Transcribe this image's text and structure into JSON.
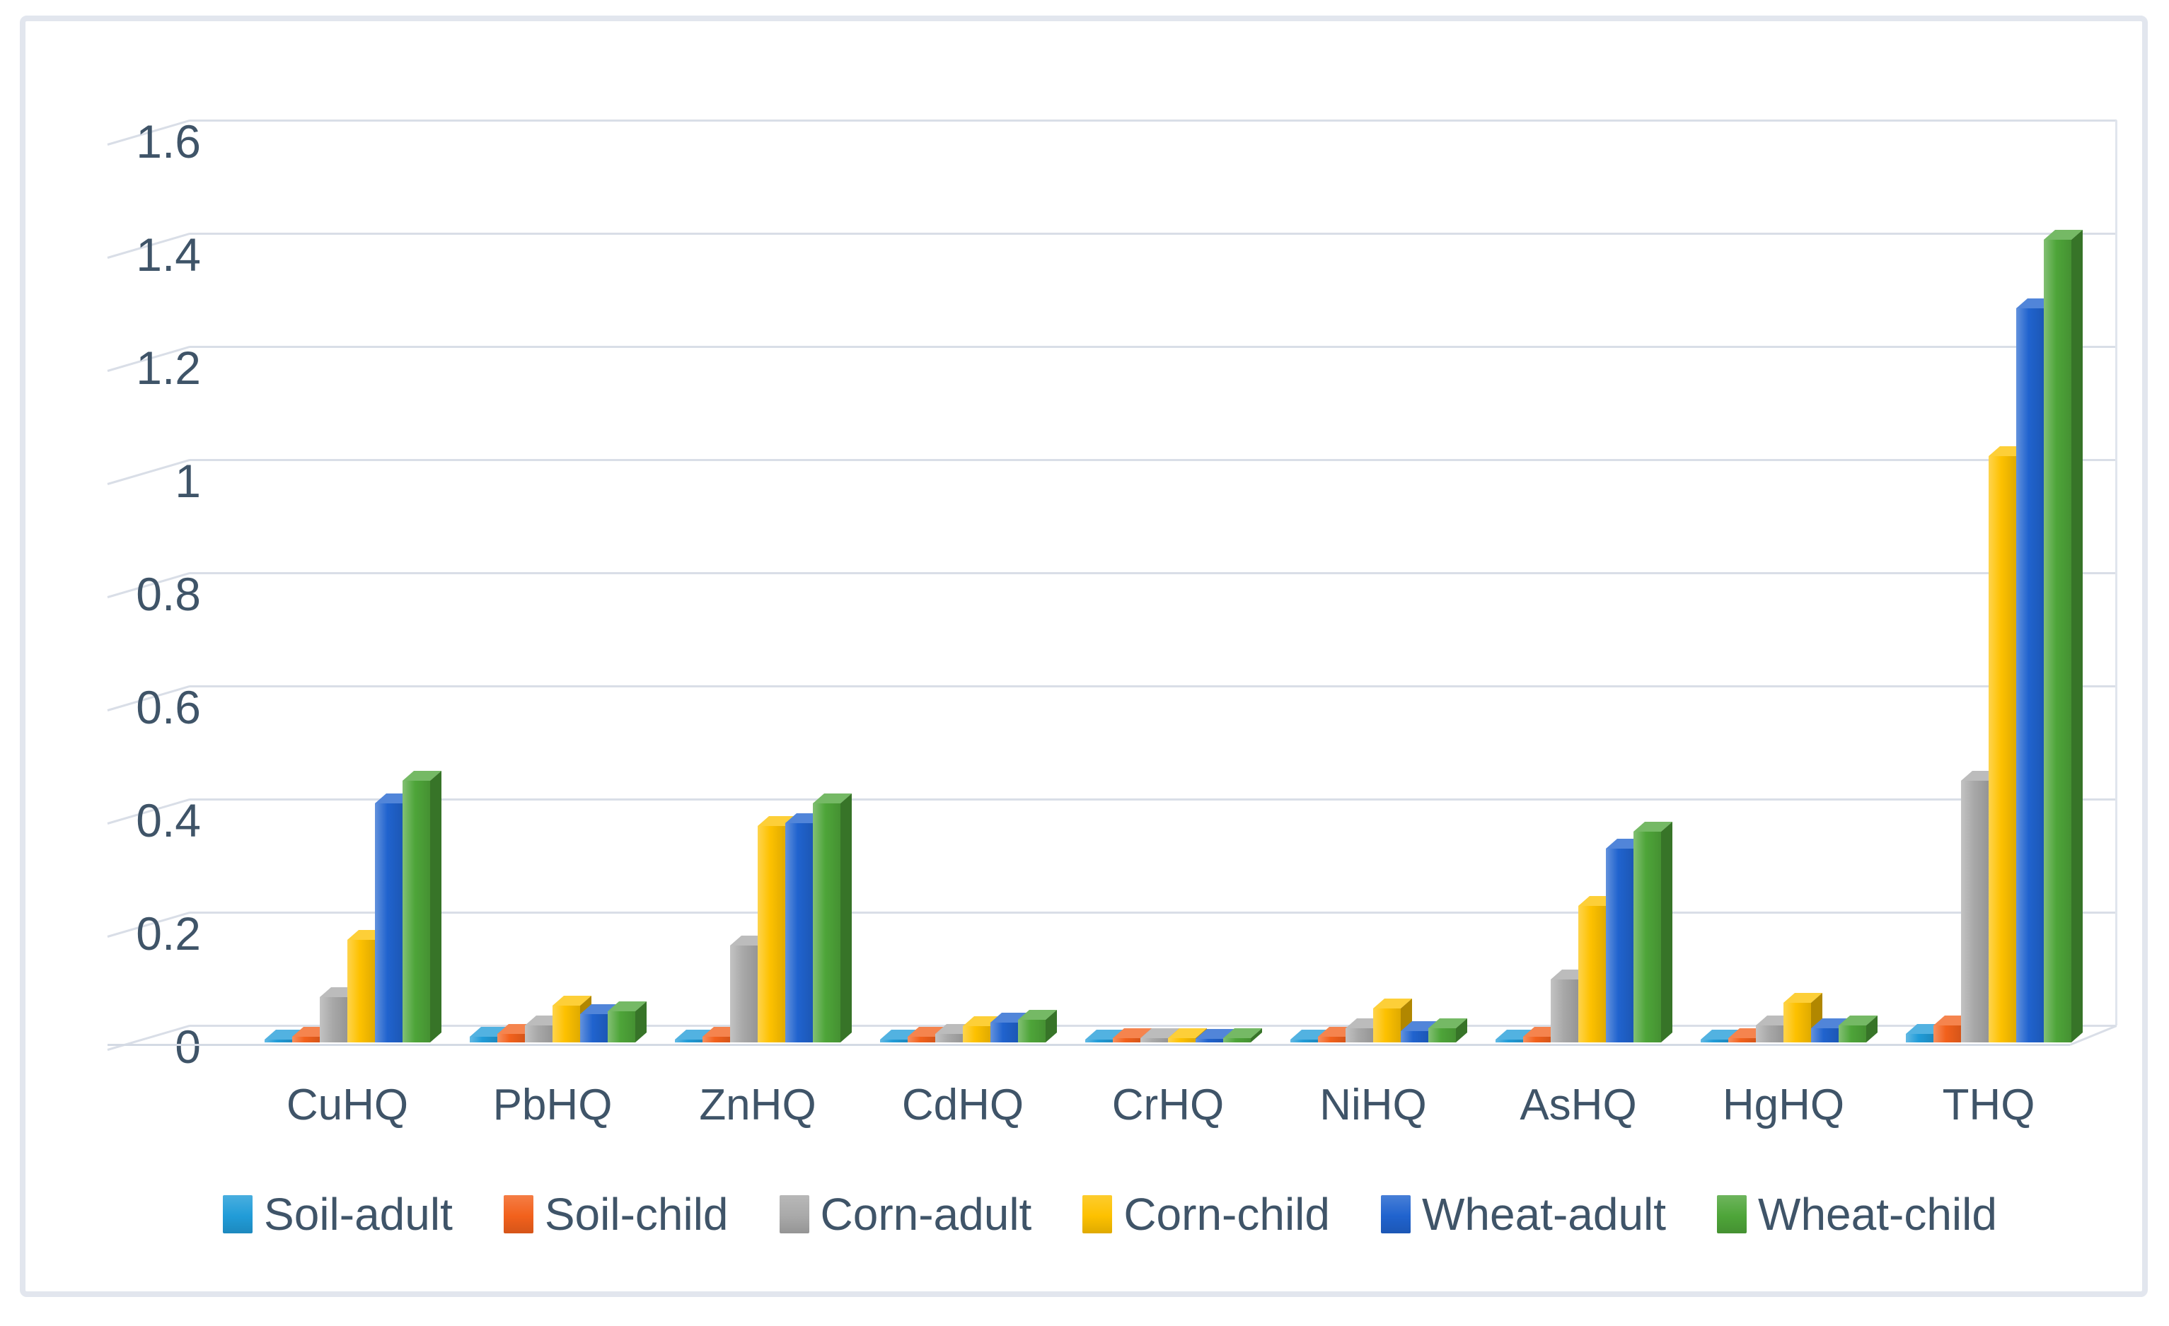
{
  "figure": {
    "background": "#ffffff",
    "border_color": "#e2e6ee",
    "text_color": "#3f5468",
    "gridline_color": "#d9dee7"
  },
  "chart_data": {
    "type": "bar",
    "style": "3d-clustered-column",
    "title": "",
    "xlabel": "",
    "ylabel": "",
    "grid": true,
    "legend_position": "bottom",
    "ylim": [
      0,
      1.6
    ],
    "ytick_step": 0.2,
    "ytick_labels": [
      "0",
      "0.2",
      "0.4",
      "0.6",
      "0.8",
      "1",
      "1.2",
      "1.4",
      "1.6"
    ],
    "categories": [
      "CuHQ",
      "PbHQ",
      "ZnHQ",
      "CdHQ",
      "CrHQ",
      "NiHQ",
      "AsHQ",
      "HgHQ",
      "THQ"
    ],
    "series": [
      {
        "name": "Soil-adult",
        "color": "#219cd8",
        "values": [
          0.005,
          0.01,
          0.005,
          0.005,
          0.005,
          0.005,
          0.005,
          0.005,
          0.015
        ]
      },
      {
        "name": "Soil-child",
        "color": "#f2611c",
        "values": [
          0.01,
          0.015,
          0.01,
          0.01,
          0.007,
          0.01,
          0.01,
          0.008,
          0.03
        ]
      },
      {
        "name": "Corn-adult",
        "color": "#a9a9a9",
        "values": [
          0.08,
          0.03,
          0.17,
          0.015,
          0.007,
          0.025,
          0.11,
          0.03,
          0.46
        ]
      },
      {
        "name": "Corn-child",
        "color": "#fdc100",
        "values": [
          0.18,
          0.065,
          0.38,
          0.028,
          0.008,
          0.06,
          0.24,
          0.07,
          1.03
        ]
      },
      {
        "name": "Wheat-adult",
        "color": "#2063ce",
        "values": [
          0.42,
          0.05,
          0.385,
          0.035,
          0.006,
          0.02,
          0.34,
          0.025,
          1.29
        ]
      },
      {
        "name": "Wheat-child",
        "color": "#4ea539",
        "values": [
          0.46,
          0.055,
          0.42,
          0.04,
          0.007,
          0.025,
          0.37,
          0.03,
          1.41
        ]
      }
    ]
  }
}
